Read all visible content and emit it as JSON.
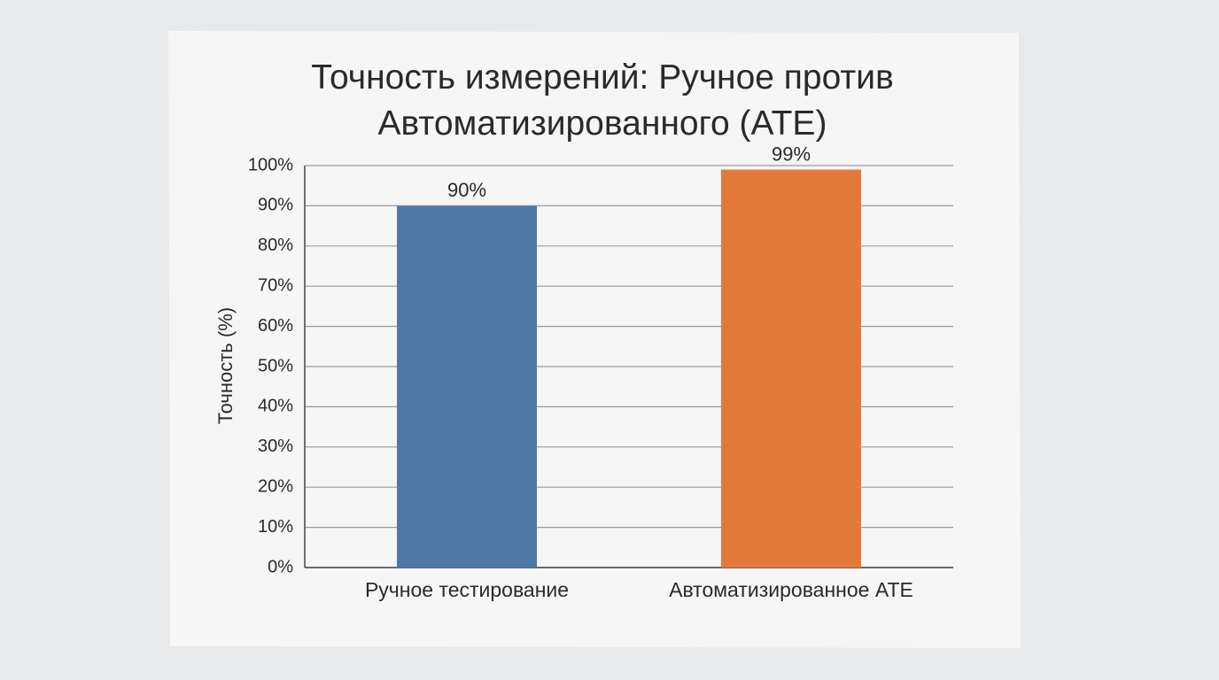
{
  "chart_data": {
    "type": "bar",
    "title": "Точность измерений: Ручное против Автоматизированного (ATE)",
    "y_label": "Точность (%)",
    "categories": [
      "Ручное тестирование",
      "Автоматизированное ATE"
    ],
    "values": [
      90,
      99
    ],
    "value_labels": [
      "90%",
      "99%"
    ],
    "colors": [
      "#4f79a4",
      "#e2793b"
    ],
    "ylim": [
      0,
      100
    ],
    "yticks": [
      {
        "value": 0,
        "label": "0%"
      },
      {
        "value": 10,
        "label": "10%"
      },
      {
        "value": 20,
        "label": "20%"
      },
      {
        "value": 30,
        "label": "30%"
      },
      {
        "value": 40,
        "label": "40%"
      },
      {
        "value": 50,
        "label": "50%"
      },
      {
        "value": 60,
        "label": "60%"
      },
      {
        "value": 70,
        "label": "70%"
      },
      {
        "value": 80,
        "label": "80%"
      },
      {
        "value": 90,
        "label": "90%"
      },
      {
        "value": 100,
        "label": "100%"
      }
    ],
    "grid": true
  }
}
